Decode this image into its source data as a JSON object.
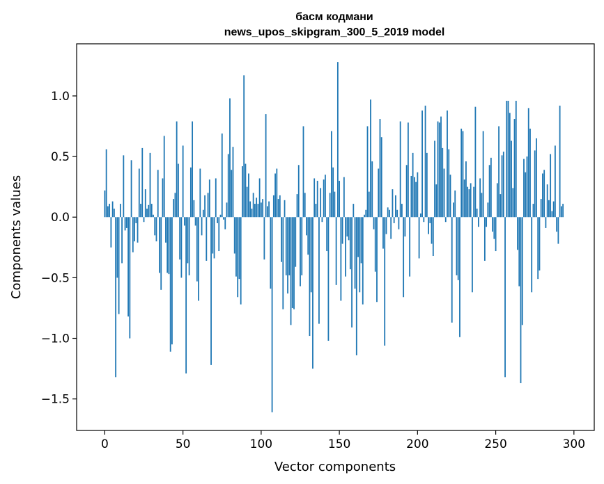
{
  "chart_data": {
    "type": "bar",
    "title_line1": "басм кодмани",
    "title_line2": "news_upos_skipgram_300_5_2019 model",
    "xlabel": "Vector components",
    "ylabel": "Components values",
    "xlim": [
      -18,
      313
    ],
    "ylim": [
      -1.76,
      1.43
    ],
    "xticks": [
      0,
      50,
      100,
      150,
      200,
      250,
      300
    ],
    "xtick_labels": [
      "0",
      "50",
      "100",
      "150",
      "200",
      "250",
      "300"
    ],
    "yticks": [
      -1.5,
      -1.0,
      -0.5,
      0.0,
      0.5,
      1.0
    ],
    "ytick_labels": [
      "−1.5",
      "−1.0",
      "−0.5",
      "0.0",
      "0.5",
      "1.0"
    ],
    "bar_color": "#1f77b4",
    "values": [
      0.22,
      0.56,
      0.09,
      0.11,
      -0.25,
      0.13,
      0.07,
      -1.32,
      -0.5,
      -0.8,
      0.11,
      -0.38,
      0.51,
      -0.11,
      -0.09,
      -0.82,
      -1.0,
      0.47,
      -0.29,
      -0.2,
      -0.05,
      -0.21,
      0.4,
      0.11,
      0.57,
      -0.04,
      0.23,
      0.07,
      0.1,
      0.53,
      0.11,
      0.02,
      -0.15,
      -0.2,
      0.39,
      -0.46,
      -0.6,
      0.32,
      0.67,
      -0.21,
      -0.46,
      -0.47,
      -1.11,
      -1.05,
      0.15,
      0.2,
      0.79,
      0.44,
      -0.35,
      -0.5,
      0.59,
      -0.07,
      -1.29,
      -0.38,
      -0.48,
      0.41,
      0.79,
      0.14,
      -0.07,
      -0.53,
      -0.69,
      0.4,
      -0.15,
      0.06,
      0.18,
      -0.36,
      0.2,
      0.31,
      -1.22,
      -0.3,
      -0.34,
      0.32,
      -0.05,
      -0.28,
      0.02,
      0.69,
      -0.02,
      -0.1,
      0.12,
      0.52,
      0.98,
      0.39,
      0.58,
      -0.3,
      -0.49,
      -0.66,
      -0.51,
      -0.72,
      0.42,
      1.17,
      0.44,
      0.25,
      0.36,
      0.13,
      0.07,
      0.2,
      0.11,
      0.16,
      0.11,
      0.32,
      0.12,
      0.15,
      -0.35,
      0.85,
      0.09,
      0.13,
      -0.59,
      -1.61,
      0.18,
      0.36,
      0.4,
      0.15,
      0.18,
      -0.37,
      -0.76,
      0.14,
      -0.48,
      -0.63,
      -0.48,
      -0.89,
      -0.75,
      -0.76,
      -0.41,
      0.19,
      0.43,
      -0.57,
      -0.48,
      0.75,
      0.2,
      -0.15,
      -0.31,
      -0.98,
      -0.62,
      -1.25,
      0.32,
      0.11,
      0.3,
      -0.88,
      0.24,
      -0.04,
      0.31,
      0.35,
      -0.28,
      -1.02,
      0.2,
      0.71,
      0.41,
      0.21,
      -0.56,
      1.28,
      0.3,
      -0.69,
      -0.22,
      0.33,
      -0.49,
      -0.16,
      -0.19,
      -0.43,
      -0.91,
      0.11,
      -0.59,
      -1.14,
      -0.33,
      -0.62,
      -0.38,
      -0.72,
      0.02,
      0.06,
      0.75,
      0.21,
      0.97,
      0.46,
      -0.1,
      -0.45,
      -0.7,
      0.4,
      0.81,
      0.66,
      -0.26,
      -1.06,
      -0.14,
      0.08,
      0.06,
      -0.18,
      0.23,
      -0.05,
      0.18,
      0.06,
      -0.1,
      0.79,
      0.11,
      -0.66,
      -0.16,
      0.43,
      0.78,
      -0.49,
      0.34,
      0.53,
      0.33,
      0.29,
      0.37,
      -0.34,
      0.03,
      0.88,
      -0.04,
      0.92,
      0.53,
      -0.14,
      -0.05,
      -0.22,
      -0.32,
      0.63,
      0.27,
      0.79,
      0.78,
      0.83,
      0.57,
      0.4,
      -0.04,
      0.88,
      0.56,
      0.35,
      -0.87,
      0.12,
      0.22,
      -0.48,
      -0.52,
      -0.99,
      0.73,
      0.71,
      0.31,
      0.46,
      0.25,
      0.23,
      0.28,
      -0.62,
      0.25,
      0.91,
      0.07,
      -0.08,
      0.32,
      0.2,
      0.71,
      -0.36,
      -0.08,
      0.12,
      0.43,
      0.49,
      -0.12,
      -0.18,
      -0.28,
      0.28,
      0.75,
      0.19,
      0.51,
      0.54,
      -1.32,
      0.96,
      0.96,
      0.86,
      0.63,
      0.24,
      0.81,
      0.96,
      -0.27,
      -0.57,
      -1.37,
      -0.89,
      0.48,
      0.37,
      0.5,
      0.9,
      0.73,
      -0.62,
      0.11,
      0.55,
      0.65,
      -0.51,
      -0.44,
      0.15,
      0.36,
      0.39,
      -0.09,
      0.27,
      0.14,
      0.52,
      0.05,
      0.13,
      0.59,
      -0.12,
      -0.22,
      0.92,
      0.09,
      0.11
    ]
  }
}
